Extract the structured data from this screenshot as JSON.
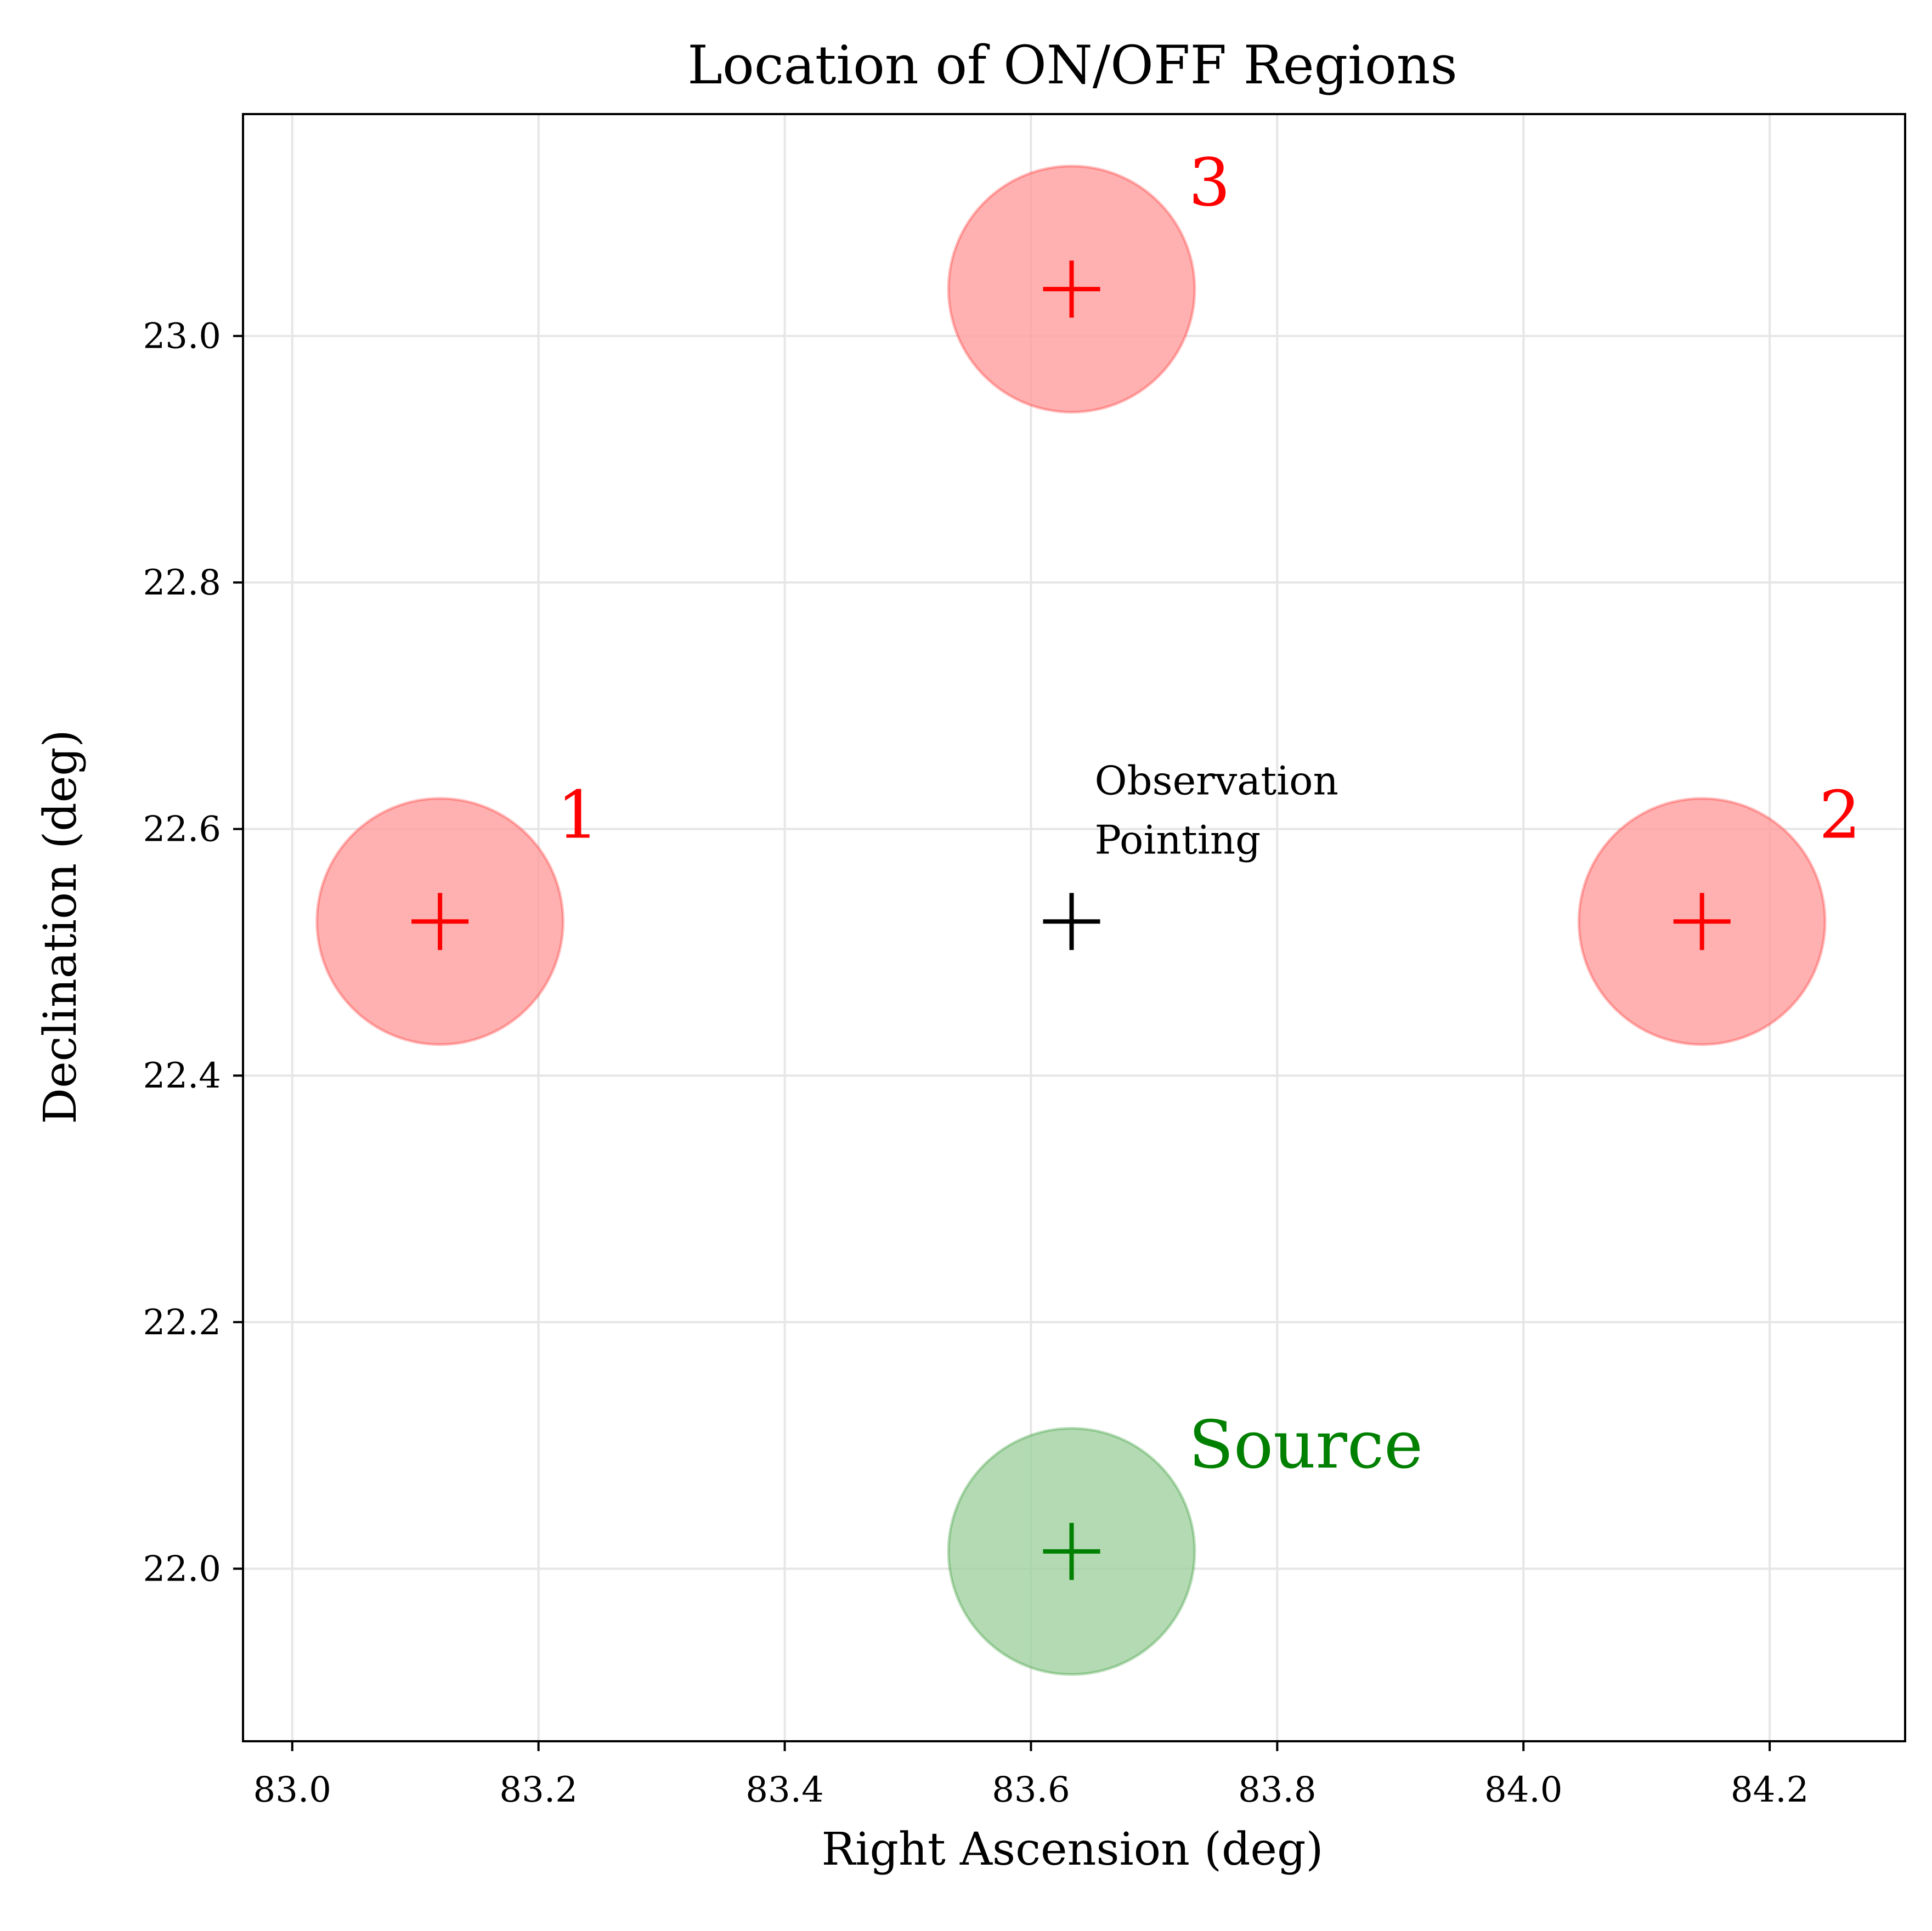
{
  "chart_data": {
    "type": "scatter",
    "title": "Location of ON/OFF Regions",
    "xlabel": "Right Ascension (deg)",
    "ylabel": "Declination (deg)",
    "xlim": [
      82.96,
      84.31
    ],
    "ylim": [
      21.86,
      23.18
    ],
    "xticks": [
      83.0,
      83.2,
      83.4,
      83.6,
      83.8,
      84.0,
      84.2
    ],
    "yticks": [
      22.0,
      22.2,
      22.4,
      22.6,
      22.8,
      23.0
    ],
    "xtick_labels": [
      "83.0",
      "83.2",
      "83.4",
      "83.6",
      "83.8",
      "84.0",
      "84.2"
    ],
    "ytick_labels": [
      "22.0",
      "22.2",
      "22.4",
      "22.6",
      "22.8",
      "23.0"
    ],
    "grid": true,
    "region_radius_deg": 0.1,
    "regions": [
      {
        "label": "1",
        "ra": 83.12,
        "dec": 22.525,
        "color": "#ff0000",
        "fill": "#ff9a9a",
        "kind": "off"
      },
      {
        "label": "2",
        "ra": 84.145,
        "dec": 22.525,
        "color": "#ff0000",
        "fill": "#ff9a9a",
        "kind": "off"
      },
      {
        "label": "3",
        "ra": 83.633,
        "dec": 23.038,
        "color": "#ff0000",
        "fill": "#ff9a9a",
        "kind": "off"
      },
      {
        "label": "Source",
        "ra": 83.633,
        "dec": 22.014,
        "color": "#008000",
        "fill": "#9dd09d",
        "kind": "on"
      }
    ],
    "pointing": {
      "label_lines": [
        "Observation",
        "Pointing"
      ],
      "ra": 83.633,
      "dec": 22.525,
      "color": "#000000"
    }
  }
}
